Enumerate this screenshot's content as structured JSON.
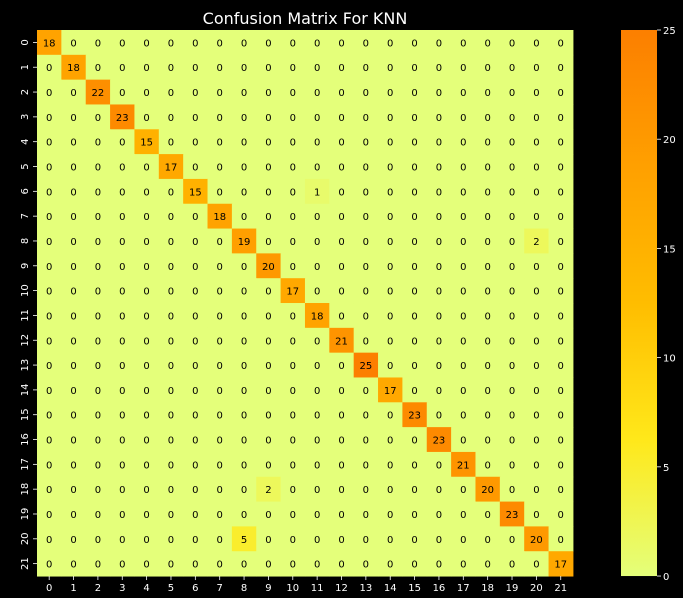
{
  "chart_data": {
    "type": "heatmap",
    "title": "Confusion Matrix For KNN",
    "xlabel": "",
    "ylabel": "",
    "x_labels": [
      "0",
      "1",
      "2",
      "3",
      "4",
      "5",
      "6",
      "7",
      "8",
      "9",
      "10",
      "11",
      "12",
      "13",
      "14",
      "15",
      "16",
      "17",
      "18",
      "19",
      "20",
      "21"
    ],
    "y_labels": [
      "0",
      "1",
      "2",
      "3",
      "4",
      "5",
      "6",
      "7",
      "8",
      "9",
      "10",
      "11",
      "12",
      "13",
      "14",
      "15",
      "16",
      "17",
      "18",
      "19",
      "20",
      "21"
    ],
    "matrix": [
      [
        18,
        0,
        0,
        0,
        0,
        0,
        0,
        0,
        0,
        0,
        0,
        0,
        0,
        0,
        0,
        0,
        0,
        0,
        0,
        0,
        0,
        0
      ],
      [
        0,
        18,
        0,
        0,
        0,
        0,
        0,
        0,
        0,
        0,
        0,
        0,
        0,
        0,
        0,
        0,
        0,
        0,
        0,
        0,
        0,
        0
      ],
      [
        0,
        0,
        22,
        0,
        0,
        0,
        0,
        0,
        0,
        0,
        0,
        0,
        0,
        0,
        0,
        0,
        0,
        0,
        0,
        0,
        0,
        0
      ],
      [
        0,
        0,
        0,
        23,
        0,
        0,
        0,
        0,
        0,
        0,
        0,
        0,
        0,
        0,
        0,
        0,
        0,
        0,
        0,
        0,
        0,
        0
      ],
      [
        0,
        0,
        0,
        0,
        15,
        0,
        0,
        0,
        0,
        0,
        0,
        0,
        0,
        0,
        0,
        0,
        0,
        0,
        0,
        0,
        0,
        0
      ],
      [
        0,
        0,
        0,
        0,
        0,
        17,
        0,
        0,
        0,
        0,
        0,
        0,
        0,
        0,
        0,
        0,
        0,
        0,
        0,
        0,
        0,
        0
      ],
      [
        0,
        0,
        0,
        0,
        0,
        0,
        15,
        0,
        0,
        0,
        0,
        1,
        0,
        0,
        0,
        0,
        0,
        0,
        0,
        0,
        0,
        0
      ],
      [
        0,
        0,
        0,
        0,
        0,
        0,
        0,
        18,
        0,
        0,
        0,
        0,
        0,
        0,
        0,
        0,
        0,
        0,
        0,
        0,
        0,
        0
      ],
      [
        0,
        0,
        0,
        0,
        0,
        0,
        0,
        0,
        19,
        0,
        0,
        0,
        0,
        0,
        0,
        0,
        0,
        0,
        0,
        0,
        2,
        0
      ],
      [
        0,
        0,
        0,
        0,
        0,
        0,
        0,
        0,
        0,
        20,
        0,
        0,
        0,
        0,
        0,
        0,
        0,
        0,
        0,
        0,
        0,
        0
      ],
      [
        0,
        0,
        0,
        0,
        0,
        0,
        0,
        0,
        0,
        0,
        17,
        0,
        0,
        0,
        0,
        0,
        0,
        0,
        0,
        0,
        0,
        0
      ],
      [
        0,
        0,
        0,
        0,
        0,
        0,
        0,
        0,
        0,
        0,
        0,
        18,
        0,
        0,
        0,
        0,
        0,
        0,
        0,
        0,
        0,
        0
      ],
      [
        0,
        0,
        0,
        0,
        0,
        0,
        0,
        0,
        0,
        0,
        0,
        0,
        21,
        0,
        0,
        0,
        0,
        0,
        0,
        0,
        0,
        0
      ],
      [
        0,
        0,
        0,
        0,
        0,
        0,
        0,
        0,
        0,
        0,
        0,
        0,
        0,
        25,
        0,
        0,
        0,
        0,
        0,
        0,
        0,
        0
      ],
      [
        0,
        0,
        0,
        0,
        0,
        0,
        0,
        0,
        0,
        0,
        0,
        0,
        0,
        0,
        17,
        0,
        0,
        0,
        0,
        0,
        0,
        0
      ],
      [
        0,
        0,
        0,
        0,
        0,
        0,
        0,
        0,
        0,
        0,
        0,
        0,
        0,
        0,
        0,
        23,
        0,
        0,
        0,
        0,
        0,
        0
      ],
      [
        0,
        0,
        0,
        0,
        0,
        0,
        0,
        0,
        0,
        0,
        0,
        0,
        0,
        0,
        0,
        0,
        23,
        0,
        0,
        0,
        0,
        0
      ],
      [
        0,
        0,
        0,
        0,
        0,
        0,
        0,
        0,
        0,
        0,
        0,
        0,
        0,
        0,
        0,
        0,
        0,
        21,
        0,
        0,
        0,
        0
      ],
      [
        0,
        0,
        0,
        0,
        0,
        0,
        0,
        0,
        0,
        2,
        0,
        0,
        0,
        0,
        0,
        0,
        0,
        0,
        20,
        0,
        0,
        0
      ],
      [
        0,
        0,
        0,
        0,
        0,
        0,
        0,
        0,
        0,
        0,
        0,
        0,
        0,
        0,
        0,
        0,
        0,
        0,
        0,
        23,
        0,
        0
      ],
      [
        0,
        0,
        0,
        0,
        0,
        0,
        0,
        0,
        5,
        0,
        0,
        0,
        0,
        0,
        0,
        0,
        0,
        0,
        0,
        0,
        20,
        0
      ],
      [
        0,
        0,
        0,
        0,
        0,
        0,
        0,
        0,
        0,
        0,
        0,
        0,
        0,
        0,
        0,
        0,
        0,
        0,
        0,
        0,
        0,
        17
      ]
    ],
    "vmin": 0,
    "vmax": 25,
    "colorbar_ticks": [
      0,
      5,
      10,
      15,
      20,
      25
    ],
    "colormap": "Wistia",
    "colormap_stops": [
      "#e4ff7a",
      "#ffe81a",
      "#ffbd00",
      "#ffa000",
      "#fc7f00"
    ],
    "background": "#000000",
    "text_color": "#ffffff",
    "annotation_color": "#000000"
  }
}
